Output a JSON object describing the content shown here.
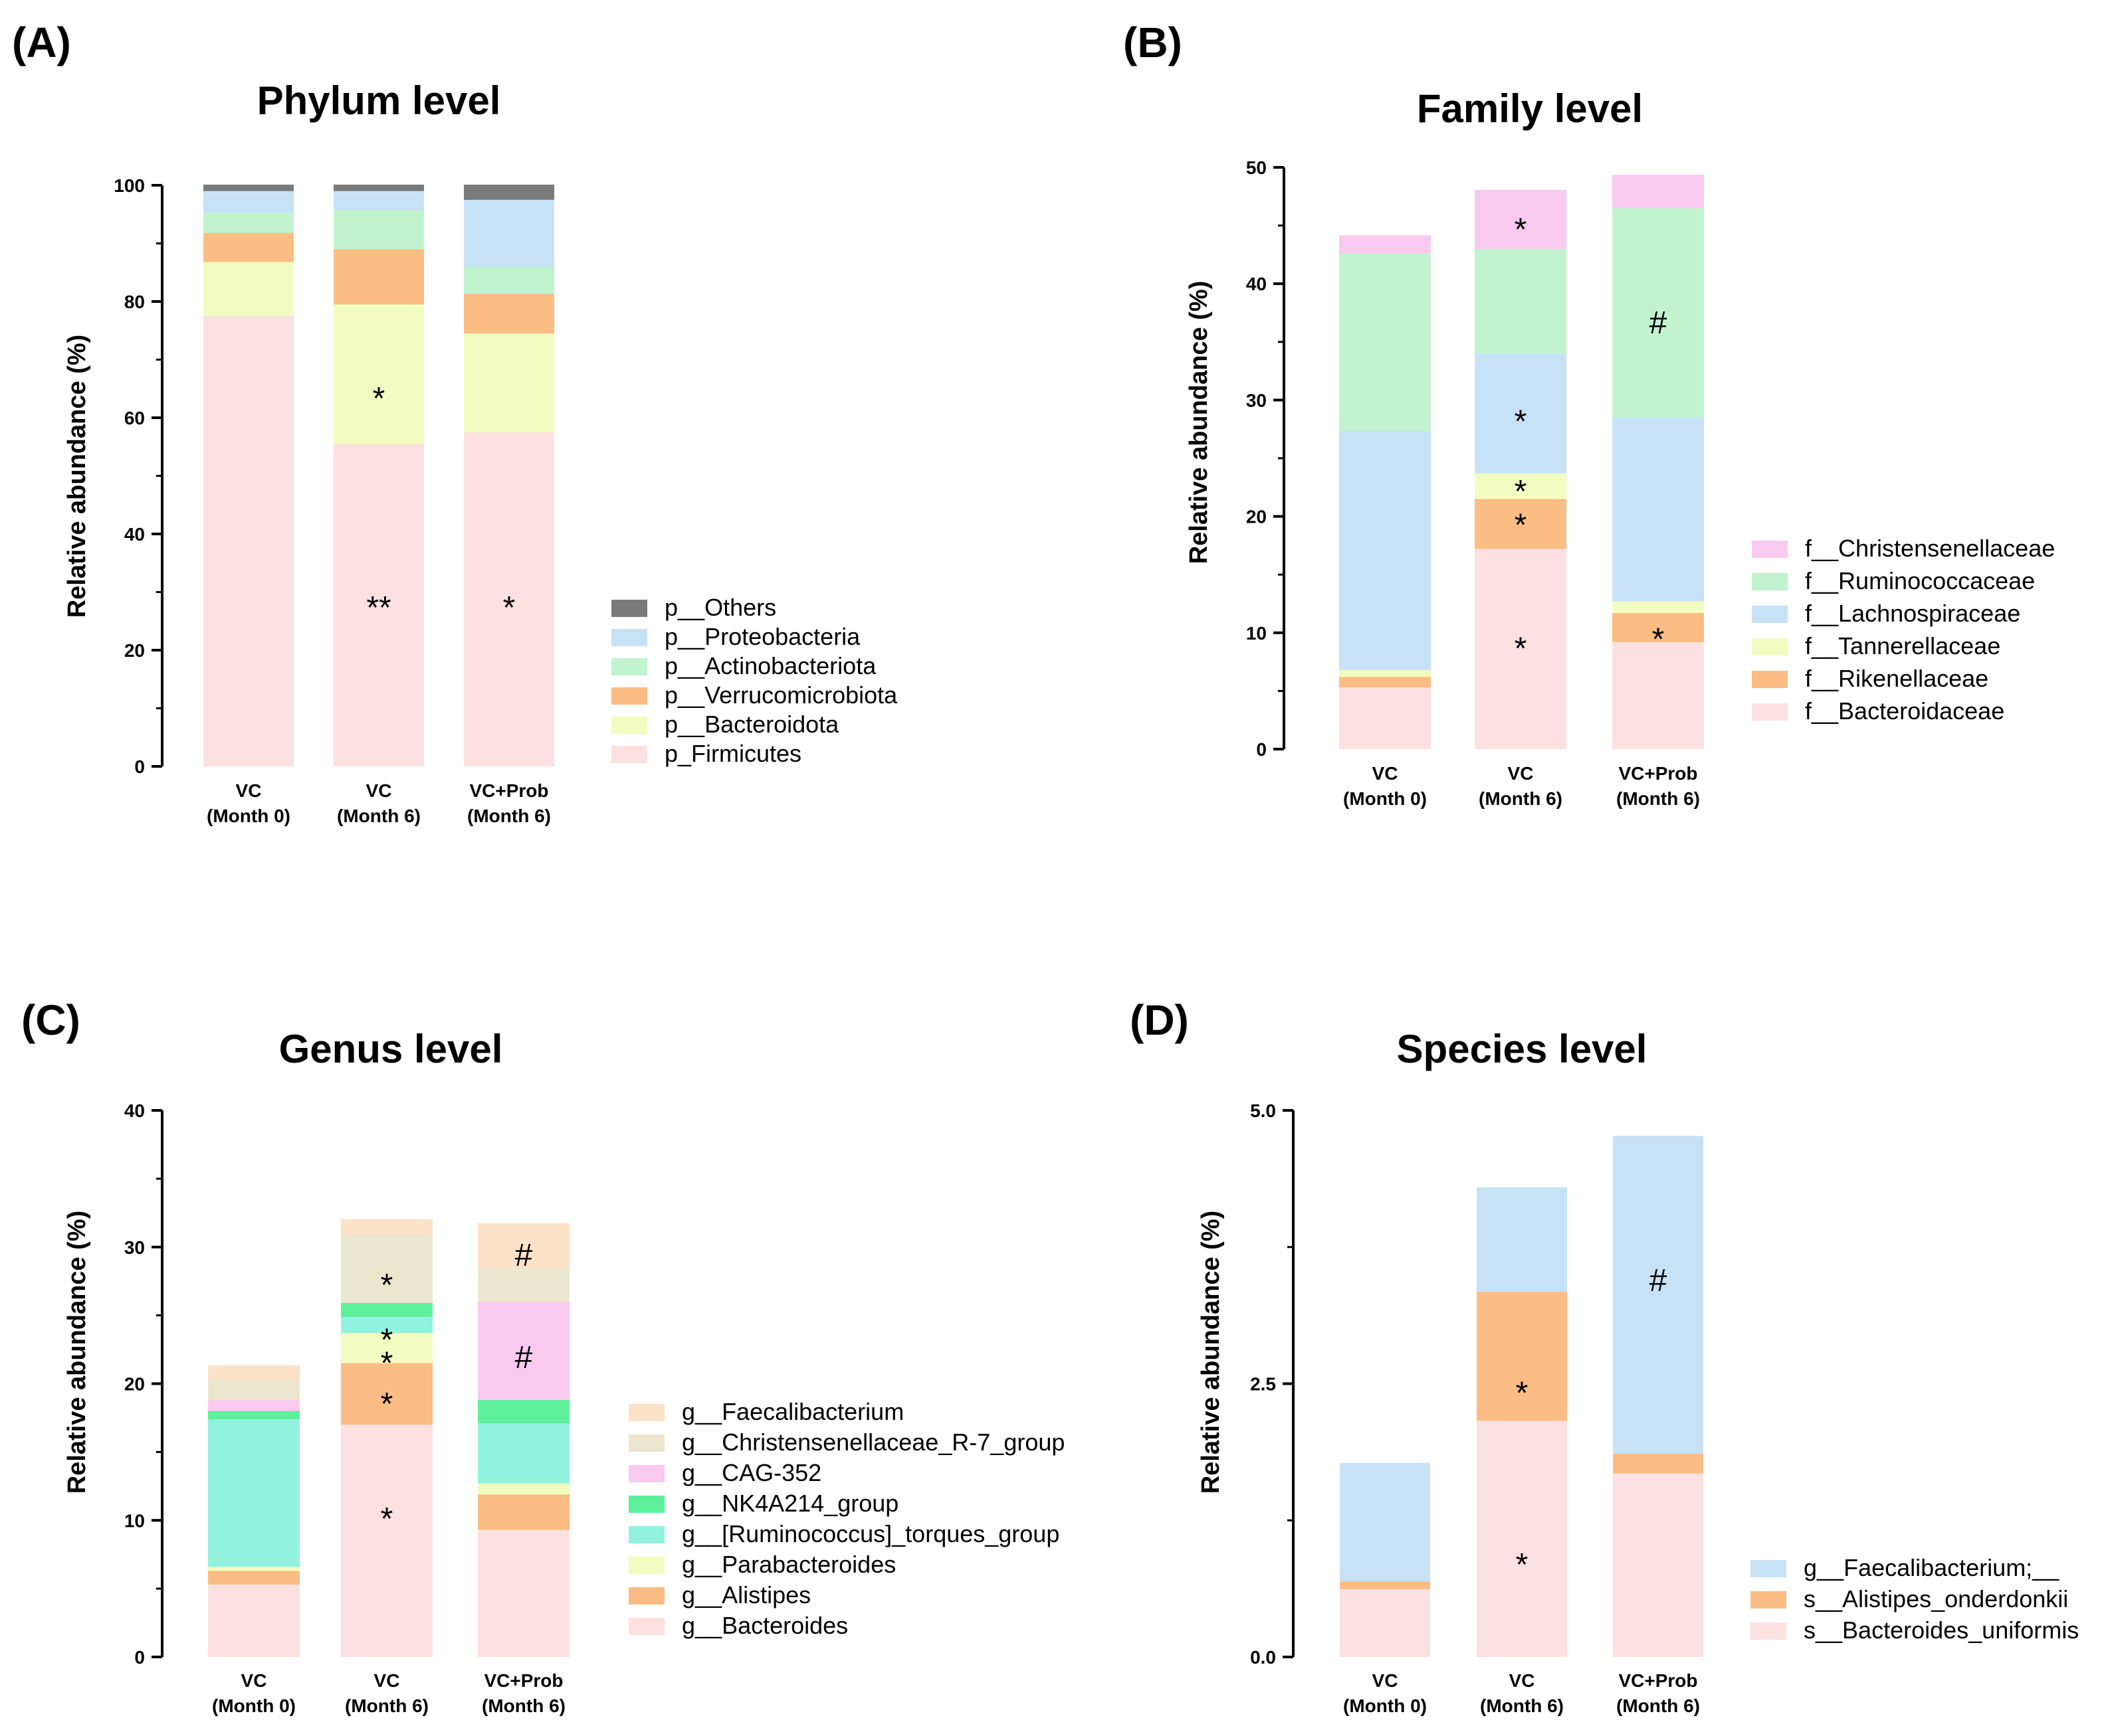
{
  "chart_data": [
    {
      "type": "bar",
      "stacked": true,
      "panel": "(A)",
      "title": "Phylum level",
      "xlabel": "",
      "ylabel": "Relative abundance (%)",
      "ylim": [
        0,
        100
      ],
      "yticks": [
        "0",
        "20",
        "40",
        "60",
        "80",
        "100"
      ],
      "categories": [
        [
          "VC",
          "(Month 0)"
        ],
        [
          "VC",
          "(Month 6)"
        ],
        [
          "VC+Prob",
          "(Month 6)"
        ]
      ],
      "series": [
        {
          "name": "p_Firmicutes",
          "color": "#fde0e0",
          "values": [
            77.5,
            55.5,
            57.5
          ]
        },
        {
          "name": "p__Bacteroidota",
          "color": "#f3fcc0",
          "values": [
            9.3,
            24.0,
            17.0
          ]
        },
        {
          "name": "p__Verrucomicrobiota",
          "color": "#fbbd84",
          "values": [
            5.0,
            9.5,
            6.8
          ]
        },
        {
          "name": "p__Actinobacteriota",
          "color": "#c2f3cf",
          "values": [
            3.5,
            6.7,
            4.7
          ]
        },
        {
          "name": "p__Proteobacteria",
          "color": "#c7e2f7",
          "values": [
            3.7,
            3.3,
            11.5
          ]
        },
        {
          "name": "p__Others",
          "color": "#7a7a7a",
          "values": [
            1.0,
            1.0,
            2.5
          ]
        }
      ],
      "annotations": [
        {
          "category": 1,
          "y": 64,
          "text": "*"
        },
        {
          "category": 1,
          "y": 28,
          "text": "**"
        },
        {
          "category": 2,
          "y": 28,
          "text": "*"
        }
      ],
      "legend": "right"
    },
    {
      "type": "bar",
      "stacked": true,
      "panel": "(B)",
      "title": "Family level",
      "xlabel": "",
      "ylabel": "Relative abundance (%)",
      "ylim": [
        0,
        50
      ],
      "yticks": [
        "0",
        "10",
        "20",
        "30",
        "40",
        "50"
      ],
      "categories": [
        [
          "VC",
          "(Month 0)"
        ],
        [
          "VC",
          "(Month 6)"
        ],
        [
          "VC+Prob",
          "(Month 6)"
        ]
      ],
      "series": [
        {
          "name": "f__Bacteroidaceae",
          "color": "#fde0e0",
          "values": [
            5.3,
            17.2,
            9.2
          ]
        },
        {
          "name": "f__Rikenellaceae",
          "color": "#fbbd84",
          "values": [
            0.9,
            4.3,
            2.5
          ]
        },
        {
          "name": "f__Tannerellaceae",
          "color": "#f3fcc0",
          "values": [
            0.6,
            2.2,
            1.0
          ]
        },
        {
          "name": "f__Lachnospiraceae",
          "color": "#c7e2f7",
          "values": [
            20.5,
            10.3,
            15.8
          ]
        },
        {
          "name": "f__Ruminococcaceae",
          "color": "#c2f3cf",
          "values": [
            15.3,
            9.0,
            18.0
          ]
        },
        {
          "name": "f__Christensenellaceae",
          "color": "#fac9f0",
          "values": [
            1.5,
            5.0,
            2.8
          ]
        }
      ],
      "annotations": [
        {
          "category": 1,
          "y": 45.0,
          "text": "*"
        },
        {
          "category": 1,
          "y": 28.5,
          "text": "*"
        },
        {
          "category": 1,
          "y": 22.5,
          "text": "*"
        },
        {
          "category": 1,
          "y": 19.6,
          "text": "*"
        },
        {
          "category": 1,
          "y": 9.0,
          "text": "*"
        },
        {
          "category": 2,
          "y": 37.0,
          "text": "#"
        },
        {
          "category": 2,
          "y": 9.8,
          "text": "*"
        }
      ],
      "legend": "right"
    },
    {
      "type": "bar",
      "stacked": true,
      "panel": "(C)",
      "title": "Genus level",
      "xlabel": "",
      "ylabel": "Relative abundance (%)",
      "ylim": [
        0,
        40
      ],
      "yticks": [
        "0",
        "10",
        "20",
        "30",
        "40"
      ],
      "categories": [
        [
          "VC",
          "(Month 0)"
        ],
        [
          "VC",
          "(Month 6)"
        ],
        [
          "VC+Prob",
          "(Month 6)"
        ]
      ],
      "series": [
        {
          "name": "g__Bacteroides",
          "color": "#fde0e0",
          "values": [
            5.3,
            17.0,
            9.3
          ]
        },
        {
          "name": "g__Alistipes",
          "color": "#fbbd84",
          "values": [
            1.0,
            4.5,
            2.6
          ]
        },
        {
          "name": "g__Parabacteroides",
          "color": "#f3fcc0",
          "values": [
            0.3,
            2.2,
            0.8
          ]
        },
        {
          "name": "g__[Ruminococcus]_torques_group",
          "color": "#92f2e0",
          "values": [
            10.8,
            1.2,
            4.4
          ]
        },
        {
          "name": "g__NK4A214_group",
          "color": "#5cf09b",
          "values": [
            0.6,
            1.0,
            1.7
          ]
        },
        {
          "name": "g__CAG-352",
          "color": "#fac9f0",
          "values": [
            0.8,
            0.0,
            7.2
          ]
        },
        {
          "name": "g__Christensenellaceae_R-7_group",
          "color": "#ede6cf",
          "values": [
            1.5,
            5.0,
            2.5
          ]
        },
        {
          "name": "g__Faecalibacterium",
          "color": "#fbe2c8",
          "values": [
            1.0,
            1.1,
            3.2
          ]
        }
      ],
      "annotations": [
        {
          "category": 1,
          "y": 27.5,
          "text": "*"
        },
        {
          "category": 1,
          "y": 23.5,
          "text": "*"
        },
        {
          "category": 1,
          "y": 21.8,
          "text": "*"
        },
        {
          "category": 1,
          "y": 18.8,
          "text": "*"
        },
        {
          "category": 1,
          "y": 10.4,
          "text": "*"
        },
        {
          "category": 2,
          "y": 29.7,
          "text": "#"
        },
        {
          "category": 2,
          "y": 22.2,
          "text": "#"
        }
      ],
      "legend": "right"
    },
    {
      "type": "bar",
      "stacked": true,
      "panel": "(D)",
      "title": "Species level",
      "xlabel": "",
      "ylabel": "Relative abundance (%)",
      "ylim": [
        0,
        5.0
      ],
      "yticks": [
        "0.0",
        "2.5",
        "5.0"
      ],
      "categories": [
        [
          "VC",
          "(Month 0)"
        ],
        [
          "VC",
          "(Month 6)"
        ],
        [
          "VC+Prob",
          "(Month 6)"
        ]
      ],
      "series": [
        {
          "name": "s__Bacteroides_uniformis",
          "color": "#fde0e0",
          "values": [
            0.62,
            2.16,
            1.68
          ]
        },
        {
          "name": "s__Alistipes_onderdonkii",
          "color": "#fbbd84",
          "values": [
            0.07,
            1.18,
            0.18
          ]
        },
        {
          "name": "g__Faecalibacterium;__",
          "color": "#c7e2f7",
          "values": [
            1.08,
            0.95,
            2.9
          ]
        }
      ],
      "annotations": [
        {
          "category": 1,
          "y": 2.45,
          "text": "*"
        },
        {
          "category": 1,
          "y": 0.88,
          "text": "*"
        },
        {
          "category": 2,
          "y": 3.48,
          "text": "#"
        }
      ],
      "legend": "bottom-right"
    }
  ]
}
